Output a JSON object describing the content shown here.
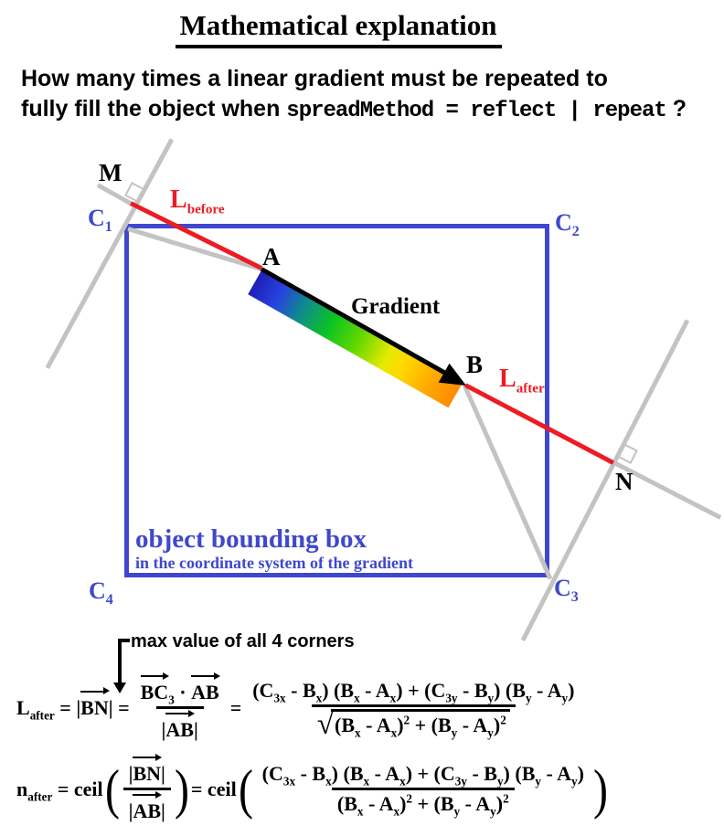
{
  "title": {
    "text": "Mathematical explanation"
  },
  "subtitle": {
    "line1": "How many times a linear gradient must be repeated to",
    "line2_prefix": "fully fill the object when ",
    "line2_code": "spreadMethod = reflect | repeat",
    "line2_suffix": " ?"
  },
  "diagram": {
    "point_labels": {
      "m": "M",
      "n": "N",
      "a": "A",
      "b": "B"
    },
    "corner_labels": {
      "c1": [
        "C",
        {
          "sub": "1"
        }
      ],
      "c2": [
        "C",
        {
          "sub": "2"
        }
      ],
      "c3": [
        "C",
        {
          "sub": "3"
        }
      ],
      "c4": [
        "C",
        {
          "sub": "4"
        }
      ]
    },
    "segment_labels": {
      "l_before": [
        "L",
        {
          "sub": "before"
        }
      ],
      "l_after": [
        "L",
        {
          "sub": "after"
        }
      ],
      "gradient": "Gradient"
    },
    "bbox_caption": {
      "title": "object bounding box",
      "subtitle": "in the coordinate system of the gradient"
    },
    "colors": {
      "box_blue": "#3f48cc",
      "red": "#ed1c24",
      "gray": "#c3c3c3",
      "black": "#000000",
      "gradient_stops": [
        "#1e1eb4 0%",
        "#2742e0 12%",
        "#0e8c8c 24%",
        "#0cc421 38%",
        "#66d800 52%",
        "#e6ea00 66%",
        "#ffd800 74%",
        "#ffa800 88%",
        "#ff8a00 100%"
      ]
    }
  },
  "annotation": {
    "max_corners": "max value of all 4 corners"
  },
  "formulas": {
    "paren_open": "(",
    "paren_close": ")",
    "f1": {
      "lhs": [
        "L",
        {
          "sub": "after"
        },
        " = |",
        {
          "vec": "BN"
        },
        "| ="
      ],
      "frac1_num": [
        {
          "vec": "BC"
        },
        {
          "sub": "3"
        },
        " · ",
        {
          "vec": "AB"
        }
      ],
      "frac1_den": [
        "|",
        {
          "vec": "AB"
        },
        "|"
      ],
      "eq": "=",
      "frac2_num": [
        "(C",
        {
          "sub": "3x"
        },
        " - B",
        {
          "sub": "x"
        },
        ") (B",
        {
          "sub": "x"
        },
        " - A",
        {
          "sub": "x"
        },
        ") + (C",
        {
          "sub": "3y"
        },
        " - B",
        {
          "sub": "y"
        },
        ") (B",
        {
          "sub": "y"
        },
        " - A",
        {
          "sub": "y"
        },
        ")"
      ],
      "frac2_den": [
        {
          "t": "√",
          "cls": "radical"
        },
        {
          "bar": [
            "(B",
            {
              "sub": "x"
            },
            " - A",
            {
              "sub": "x"
            },
            ")",
            {
              "sup": "2"
            },
            " + (B",
            {
              "sub": "y"
            },
            " - A",
            {
              "sub": "y"
            },
            ")",
            {
              "sup": "2"
            }
          ]
        }
      ]
    },
    "f2": {
      "lhs": [
        "n",
        {
          "sub": "after"
        },
        " = ceil"
      ],
      "fracA_num": [
        "|",
        {
          "vec": "BN"
        },
        "|"
      ],
      "fracA_den": [
        "|",
        {
          "vec": "AB"
        },
        "|"
      ],
      "mid": "= ceil",
      "fracB_num": [
        "(C",
        {
          "sub": "3x"
        },
        " - B",
        {
          "sub": "x"
        },
        ") (B",
        {
          "sub": "x"
        },
        " - A",
        {
          "sub": "x"
        },
        ") + (C",
        {
          "sub": "3y"
        },
        " - B",
        {
          "sub": "y"
        },
        ") (B",
        {
          "sub": "y"
        },
        " - A",
        {
          "sub": "y"
        },
        ")"
      ],
      "fracB_den": [
        "(B",
        {
          "sub": "x"
        },
        " - A",
        {
          "sub": "x"
        },
        ")",
        {
          "sup": "2"
        },
        " + (B",
        {
          "sub": "y"
        },
        " - A",
        {
          "sub": "y"
        },
        ")",
        {
          "sup": "2"
        }
      ]
    }
  }
}
